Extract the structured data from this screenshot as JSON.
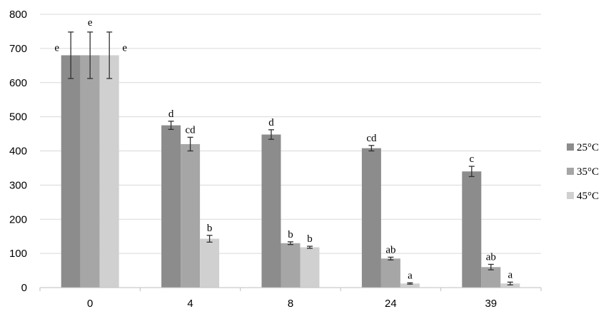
{
  "chart_data": {
    "type": "bar",
    "categories": [
      "0",
      "4",
      "8",
      "24",
      "39"
    ],
    "series": [
      {
        "name": "25°C",
        "color": "#8c8c8c",
        "values": [
          680,
          475,
          448,
          408,
          340
        ],
        "errors": [
          68,
          12,
          14,
          8,
          15
        ],
        "labels": [
          "e",
          "d",
          "d",
          "cd",
          "c"
        ]
      },
      {
        "name": "35°C",
        "color": "#a6a6a6",
        "values": [
          680,
          420,
          130,
          85,
          60
        ],
        "errors": [
          68,
          20,
          4,
          4,
          8
        ],
        "labels": [
          "e",
          "cd",
          "b",
          "ab",
          "ab"
        ]
      },
      {
        "name": "45°C",
        "color": "#d0d0d0",
        "values": [
          680,
          143,
          118,
          12,
          12
        ],
        "errors": [
          68,
          10,
          3,
          2,
          4
        ],
        "labels": [
          "e",
          "b",
          "b",
          "a",
          "a"
        ]
      }
    ],
    "yticks": [
      "0",
      "100",
      "200",
      "300",
      "400",
      "500",
      "600",
      "700",
      "800"
    ],
    "ylim": [
      0,
      800
    ],
    "grid": true,
    "legend_position": "right",
    "title": "",
    "xlabel": "",
    "ylabel": ""
  }
}
